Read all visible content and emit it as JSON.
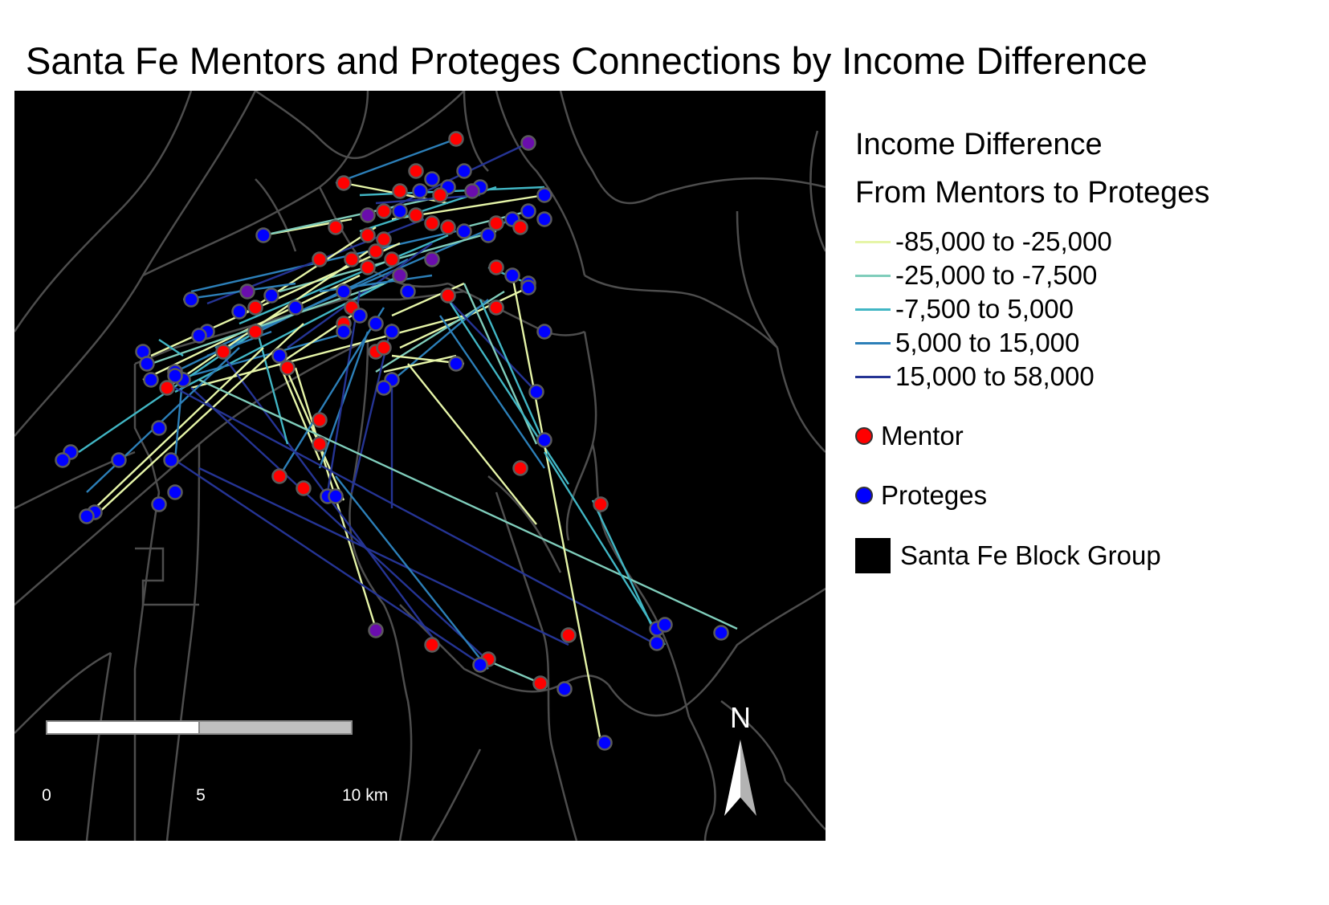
{
  "title": "Santa Fe Mentors and Proteges Connections by Income Difference",
  "legend": {
    "title_line1": "Income Difference",
    "title_line2": "From Mentors to Proteges",
    "classes": [
      {
        "label": "-85,000  to  -25,000",
        "color": "#e6f5a8"
      },
      {
        "label": "-25,000  to  -7,500",
        "color": "#7fcdbb"
      },
      {
        "label": "-7,500  to  5,000",
        "color": "#41b6c4"
      },
      {
        "label": "5,000  to  15,000",
        "color": "#2c7fb8"
      },
      {
        "label": "15,000  to  58,000",
        "color": "#253494"
      }
    ],
    "mentor_label": "Mentor",
    "mentor_color": "#ff0000",
    "protege_label": "Proteges",
    "protege_color": "#0000ff",
    "blockgroup_label": "Santa Fe Block Group",
    "blockgroup_color": "#000000"
  },
  "scale_bar": {
    "labels": [
      "0",
      "5",
      "10 km"
    ]
  },
  "north_arrow": {
    "label": "N"
  }
}
